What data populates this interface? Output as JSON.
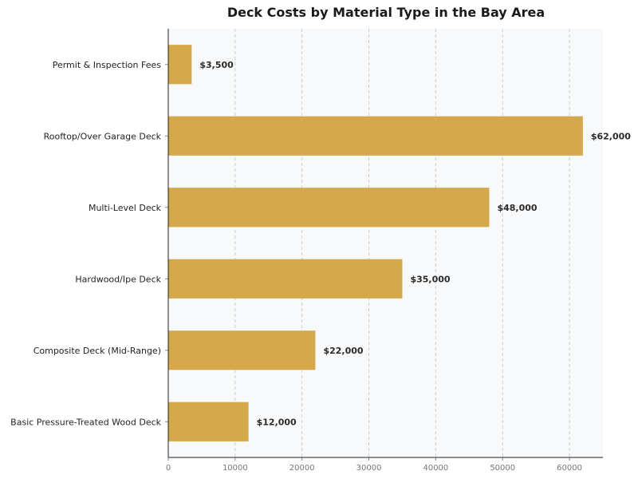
{
  "chart_data": {
    "type": "bar",
    "orientation": "horizontal",
    "title": "Deck Costs by Material Type in the Bay Area",
    "xlabel": "",
    "ylabel": "",
    "categories": [
      "Basic Pressure-Treated Wood Deck",
      "Composite Deck (Mid-Range)",
      "Hardwood/Ipe Deck",
      "Multi-Level Deck",
      "Rooftop/Over Garage Deck",
      "Permit & Inspection Fees"
    ],
    "values": [
      12000,
      22000,
      35000,
      48000,
      62000,
      3500
    ],
    "data_labels": [
      "$12,000",
      "$22,000",
      "$35,000",
      "$48,000",
      "$62,000",
      "$3,500"
    ],
    "xlim": [
      0,
      65000
    ],
    "xticks": [
      0,
      10000,
      20000,
      30000,
      40000,
      50000,
      60000
    ],
    "xtick_labels": [
      "0",
      "10000",
      "20000",
      "30000",
      "40000",
      "50000",
      "60000"
    ],
    "grid": "x-dashed",
    "legend": "none",
    "colors": {
      "bar": "#D4A84B",
      "plot_background": "#F8F9FA",
      "grid": "#CCCCCC",
      "axis": "#222222"
    }
  }
}
